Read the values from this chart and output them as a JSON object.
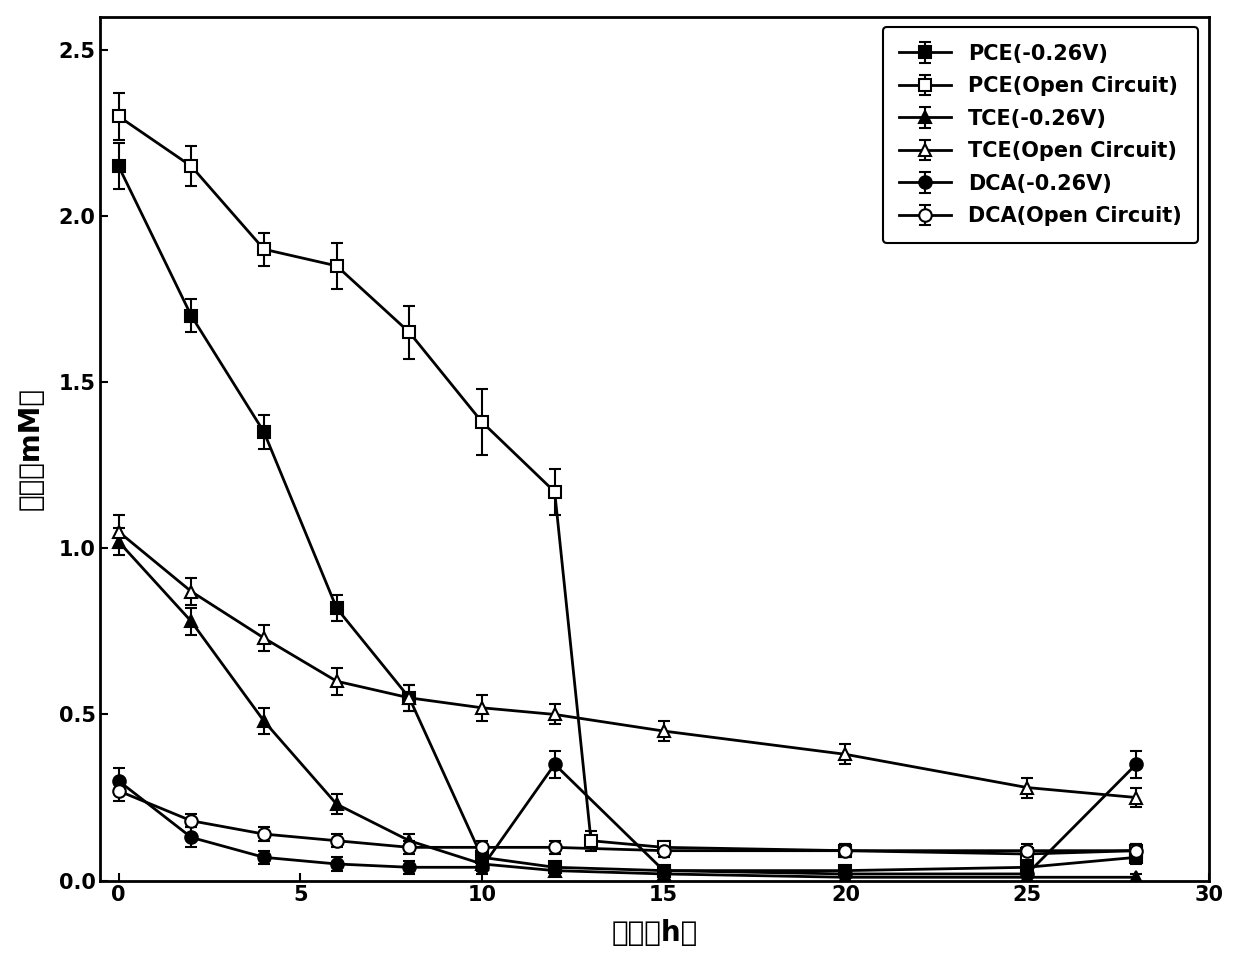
{
  "series": [
    {
      "label": "PCE(-0.26V)",
      "x": [
        0,
        2,
        4,
        6,
        8,
        10,
        12,
        15,
        20,
        25,
        28
      ],
      "y": [
        2.15,
        1.7,
        1.35,
        0.82,
        0.55,
        0.07,
        0.04,
        0.03,
        0.03,
        0.04,
        0.07
      ],
      "yerr": [
        0.07,
        0.05,
        0.05,
        0.04,
        0.04,
        0.02,
        0.01,
        0.01,
        0.01,
        0.01,
        0.02
      ],
      "marker": "s",
      "fillstyle": "full",
      "linestyle": "-",
      "linewidth": 2.0
    },
    {
      "label": "PCE(Open Circuit)",
      "x": [
        0,
        2,
        4,
        6,
        8,
        10,
        12,
        13,
        15,
        20,
        25,
        28
      ],
      "y": [
        2.3,
        2.15,
        1.9,
        1.85,
        1.65,
        1.38,
        1.17,
        0.12,
        0.1,
        0.09,
        0.08,
        0.09
      ],
      "yerr": [
        0.07,
        0.06,
        0.05,
        0.07,
        0.08,
        0.1,
        0.07,
        0.03,
        0.02,
        0.02,
        0.02,
        0.02
      ],
      "marker": "s",
      "fillstyle": "none",
      "linestyle": "-",
      "linewidth": 2.0
    },
    {
      "label": "TCE(-0.26V)",
      "x": [
        0,
        2,
        4,
        6,
        8,
        10,
        12,
        15,
        20,
        25,
        28
      ],
      "y": [
        1.02,
        0.78,
        0.48,
        0.23,
        0.12,
        0.05,
        0.03,
        0.02,
        0.01,
        0.01,
        0.01
      ],
      "yerr": [
        0.04,
        0.04,
        0.04,
        0.03,
        0.02,
        0.02,
        0.01,
        0.01,
        0.01,
        0.01,
        0.01
      ],
      "marker": "^",
      "fillstyle": "full",
      "linestyle": "-",
      "linewidth": 2.0
    },
    {
      "label": "TCE(Open Circuit)",
      "x": [
        0,
        2,
        4,
        6,
        8,
        10,
        12,
        15,
        20,
        25,
        28
      ],
      "y": [
        1.05,
        0.87,
        0.73,
        0.6,
        0.55,
        0.52,
        0.5,
        0.45,
        0.38,
        0.28,
        0.25
      ],
      "yerr": [
        0.05,
        0.04,
        0.04,
        0.04,
        0.04,
        0.04,
        0.03,
        0.03,
        0.03,
        0.03,
        0.03
      ],
      "marker": "^",
      "fillstyle": "none",
      "linestyle": "-",
      "linewidth": 2.0
    },
    {
      "label": "DCA(-0.26V)",
      "x": [
        0,
        2,
        4,
        6,
        8,
        10,
        12,
        15,
        20,
        25,
        28
      ],
      "y": [
        0.3,
        0.13,
        0.07,
        0.05,
        0.04,
        0.04,
        0.35,
        0.03,
        0.02,
        0.02,
        0.35
      ],
      "yerr": [
        0.04,
        0.03,
        0.02,
        0.02,
        0.02,
        0.02,
        0.04,
        0.01,
        0.01,
        0.01,
        0.04
      ],
      "marker": "o",
      "fillstyle": "full",
      "linestyle": "-",
      "linewidth": 2.0
    },
    {
      "label": "DCA(Open Circuit)",
      "x": [
        0,
        2,
        4,
        6,
        8,
        10,
        12,
        15,
        20,
        25,
        28
      ],
      "y": [
        0.27,
        0.18,
        0.14,
        0.12,
        0.1,
        0.1,
        0.1,
        0.09,
        0.09,
        0.09,
        0.09
      ],
      "yerr": [
        0.03,
        0.02,
        0.02,
        0.02,
        0.02,
        0.02,
        0.02,
        0.02,
        0.02,
        0.02,
        0.02
      ],
      "marker": "o",
      "fillstyle": "none",
      "linestyle": "-",
      "linewidth": 2.0
    }
  ],
  "xlabel": "时间（h）",
  "ylabel": "浓度（mM）",
  "xlim": [
    -0.5,
    30
  ],
  "ylim": [
    0,
    2.6
  ],
  "yticks": [
    0.0,
    0.5,
    1.0,
    1.5,
    2.0,
    2.5
  ],
  "xticks": [
    0,
    5,
    10,
    15,
    20,
    25,
    30
  ],
  "color": "#000000",
  "legend_fontsize": 15,
  "axis_label_fontsize": 20,
  "tick_fontsize": 15,
  "markersize": 9,
  "background_color": "#ffffff"
}
